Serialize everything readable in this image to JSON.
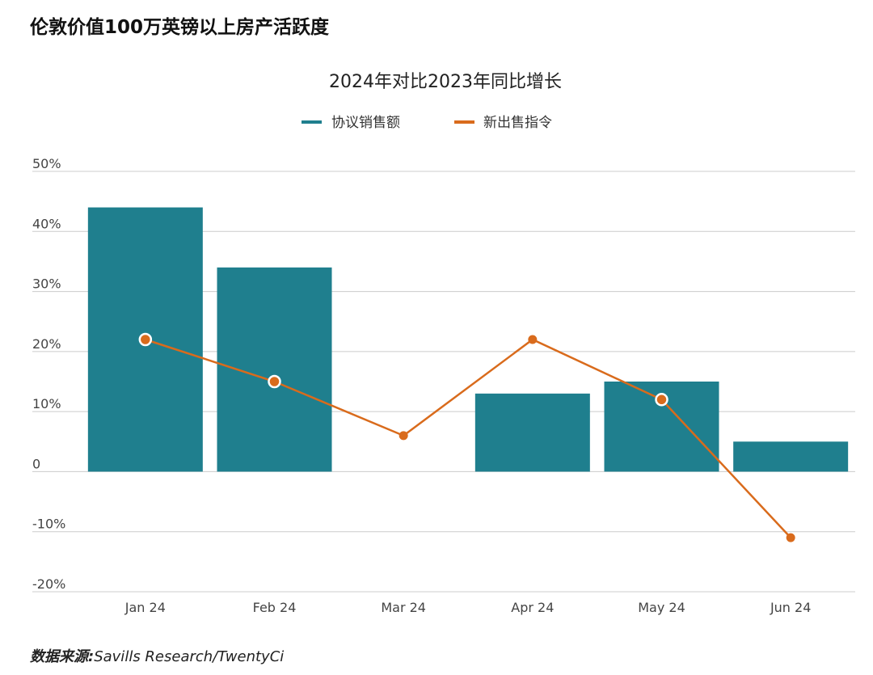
{
  "title": "伦敦价值100万英镑以上房产活跃度",
  "source_label": "数据来源:",
  "source_text": "Savills Research/TwentyCi",
  "colors": {
    "bar": "#1f7f8e",
    "line": "#d96b1c",
    "grid": "#cccccc",
    "text": "#444444"
  },
  "chart_data": {
    "type": "bar",
    "title": "2024年对比2023年同比增长",
    "categories": [
      "Jan 24",
      "Feb 24",
      "Mar 24",
      "Apr 24",
      "May 24",
      "Jun 24"
    ],
    "series": [
      {
        "name": "协议销售额",
        "type": "bar",
        "values": [
          44,
          34,
          0,
          13,
          15,
          5
        ]
      },
      {
        "name": "新出售指令",
        "type": "line",
        "values": [
          22,
          15,
          6,
          22,
          12,
          -11
        ],
        "hollow_markers": [
          true,
          true,
          false,
          false,
          true,
          false
        ]
      }
    ],
    "yticks": [
      "50%",
      "40%",
      "30%",
      "20%",
      "10%",
      "0",
      "-10%",
      "-20%"
    ],
    "ytick_values": [
      50,
      40,
      30,
      20,
      10,
      0,
      -10,
      -20
    ],
    "ylim": [
      -20,
      50
    ],
    "legend": "top-center",
    "grid": true
  }
}
